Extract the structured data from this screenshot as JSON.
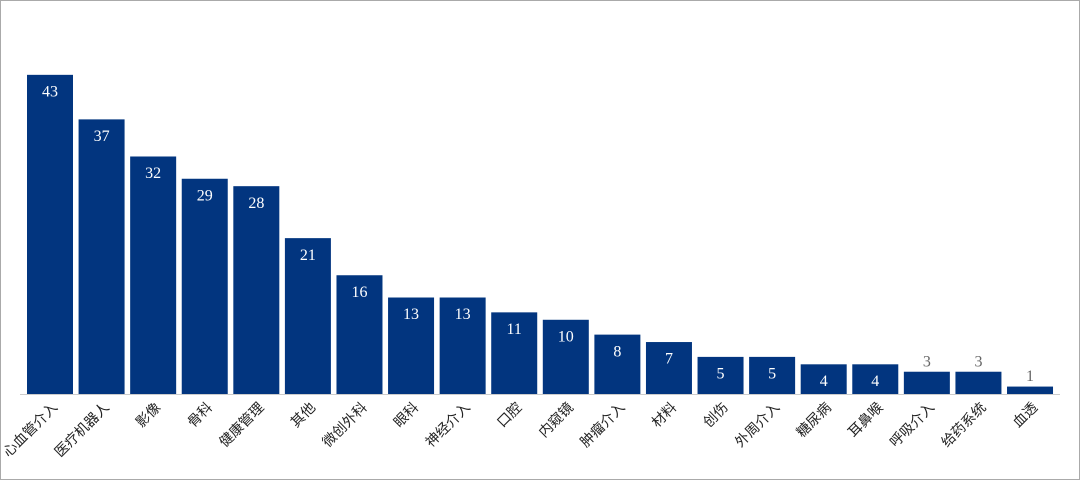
{
  "chart_data": {
    "type": "bar",
    "categories": [
      "心血管介入",
      "医疗机器人",
      "影像",
      "骨科",
      "健康管理",
      "其他",
      "微创外科",
      "眼科",
      "神经介入",
      "口腔",
      "内窥镜",
      "肿瘤介入",
      "材料",
      "创伤",
      "外周介入",
      "糖尿病",
      "耳鼻喉",
      "呼吸介入",
      "给药系统",
      "血透"
    ],
    "values": [
      43,
      37,
      32,
      29,
      28,
      21,
      16,
      13,
      13,
      11,
      10,
      8,
      7,
      5,
      5,
      4,
      4,
      3,
      3,
      1
    ],
    "color": "#02357f",
    "ylim": [
      0,
      45
    ]
  }
}
